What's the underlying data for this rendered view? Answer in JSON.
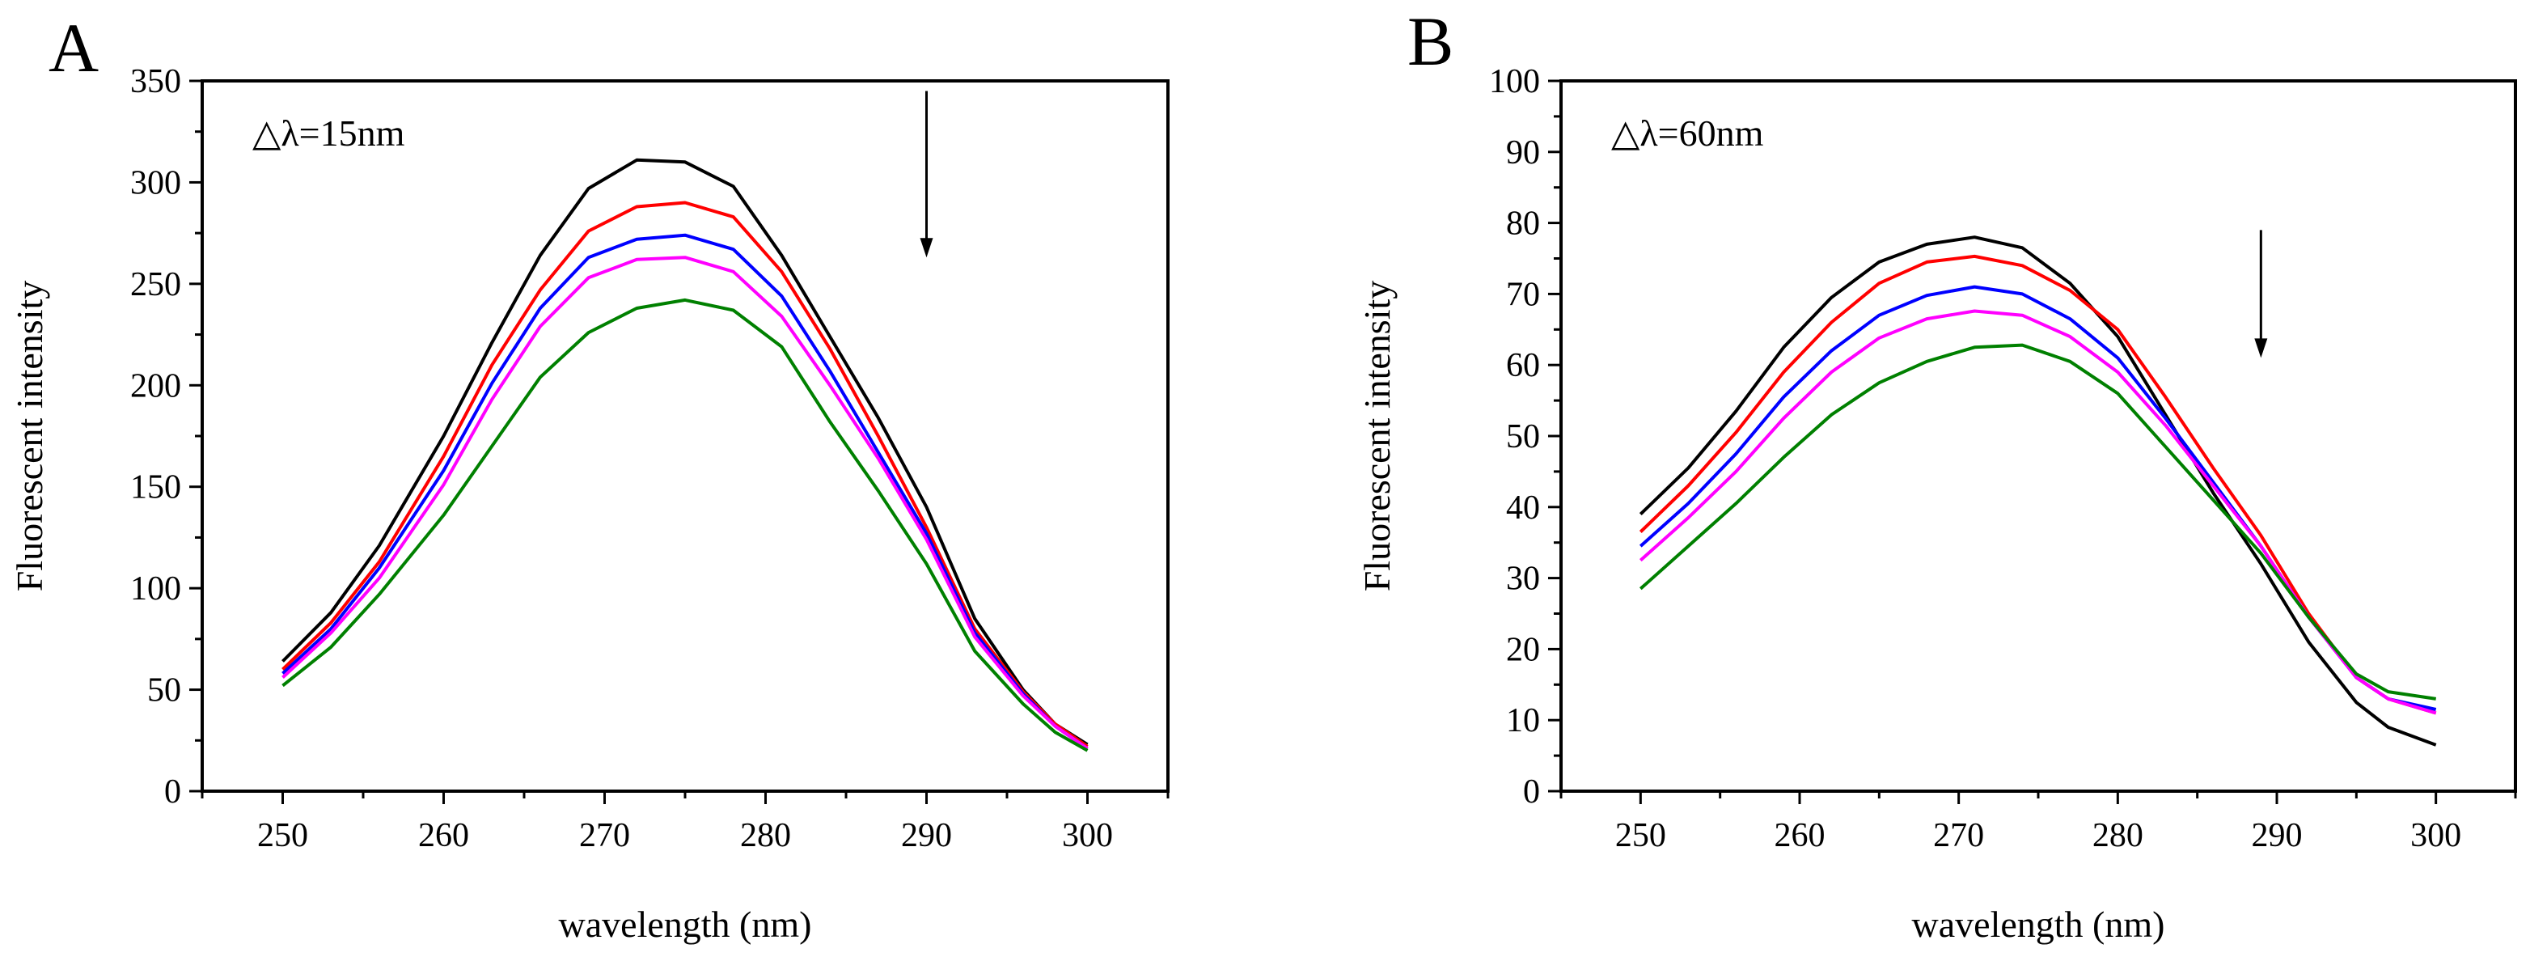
{
  "chart_data": [
    {
      "panel_label": "A",
      "type": "line",
      "annotation": "△λ=15nm",
      "xlabel": "wavelength (nm)",
      "ylabel": "Fluorescent intensity",
      "xlim": [
        245,
        305
      ],
      "ylim": [
        0,
        350
      ],
      "xticks": [
        250,
        260,
        270,
        280,
        290,
        300
      ],
      "yticks": [
        0,
        50,
        100,
        150,
        200,
        250,
        300,
        350
      ],
      "arrow": {
        "x": 290,
        "y_from": 345,
        "y_to": 263,
        "direction": "down"
      },
      "x": [
        250,
        253,
        256,
        260,
        263,
        266,
        269,
        272,
        275,
        278,
        281,
        284,
        287,
        290,
        293,
        296,
        298,
        300
      ],
      "series": [
        {
          "name": "black",
          "color": "#000000",
          "values": [
            64,
            88,
            121,
            175,
            221,
            264,
            297,
            311,
            310,
            298,
            264,
            224,
            184,
            140,
            85,
            50,
            33,
            23
          ]
        },
        {
          "name": "red",
          "color": "#ff0000",
          "values": [
            60,
            83,
            113,
            165,
            210,
            247,
            276,
            288,
            290,
            283,
            256,
            218,
            175,
            130,
            80,
            49,
            33,
            22
          ]
        },
        {
          "name": "blue",
          "color": "#0000ff",
          "values": [
            58,
            80,
            110,
            158,
            201,
            238,
            263,
            272,
            274,
            267,
            244,
            207,
            167,
            127,
            78,
            48,
            32,
            21
          ]
        },
        {
          "name": "magenta",
          "color": "#ff00ff",
          "values": [
            56,
            78,
            105,
            151,
            193,
            229,
            253,
            262,
            263,
            256,
            234,
            200,
            164,
            124,
            76,
            47,
            32,
            21
          ]
        },
        {
          "name": "green",
          "color": "#008000",
          "values": [
            52,
            71,
            97,
            136,
            170,
            204,
            226,
            238,
            242,
            237,
            219,
            182,
            148,
            112,
            69,
            43,
            29,
            20
          ]
        }
      ]
    },
    {
      "panel_label": "B",
      "type": "line",
      "annotation": "△λ=60nm",
      "xlabel": "wavelength (nm)",
      "ylabel": "Fluorescent intensity",
      "xlim": [
        245,
        305
      ],
      "ylim": [
        0,
        100
      ],
      "xticks": [
        250,
        260,
        270,
        280,
        290,
        300
      ],
      "yticks": [
        0,
        10,
        20,
        30,
        40,
        50,
        60,
        70,
        80,
        90,
        100
      ],
      "arrow": {
        "x": 289,
        "y_from": 79,
        "y_to": 61,
        "direction": "down"
      },
      "x": [
        250,
        253,
        256,
        259,
        262,
        265,
        268,
        271,
        274,
        277,
        280,
        283,
        286,
        289,
        292,
        295,
        297,
        300
      ],
      "series": [
        {
          "name": "black",
          "color": "#000000",
          "values": [
            39,
            45.5,
            53.5,
            62.5,
            69.5,
            74.5,
            77,
            78,
            76.5,
            71.5,
            64,
            53,
            42,
            32,
            21,
            12.5,
            9,
            6.5
          ]
        },
        {
          "name": "red",
          "color": "#ff0000",
          "values": [
            36.5,
            43,
            50.5,
            59,
            66,
            71.5,
            74.5,
            75.3,
            74,
            70.5,
            65,
            55.5,
            45.5,
            36,
            25,
            16,
            13,
            11
          ]
        },
        {
          "name": "blue",
          "color": "#0000ff",
          "values": [
            34.5,
            40.5,
            47.5,
            55.5,
            62,
            67,
            69.8,
            71,
            70,
            66.5,
            61,
            52.5,
            43.5,
            34.5,
            24.5,
            16,
            13,
            11.5
          ]
        },
        {
          "name": "magenta",
          "color": "#ff00ff",
          "values": [
            32.5,
            38.5,
            45,
            52.5,
            59,
            63.8,
            66.5,
            67.6,
            67,
            64,
            59,
            51.5,
            43,
            34.5,
            24.5,
            16,
            13,
            11
          ]
        },
        {
          "name": "green",
          "color": "#008000",
          "values": [
            28.5,
            34.5,
            40.5,
            47,
            53,
            57.5,
            60.5,
            62.5,
            62.8,
            60.5,
            56,
            48.5,
            41,
            33.5,
            24.5,
            16.5,
            14,
            13
          ]
        }
      ]
    }
  ]
}
